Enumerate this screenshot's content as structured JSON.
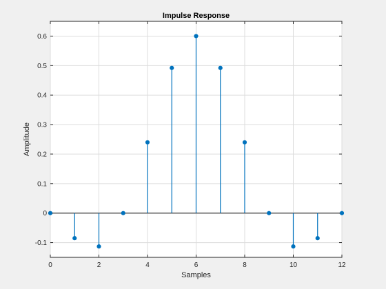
{
  "chart_data": {
    "type": "stem",
    "title": "Impulse Response",
    "xlabel": "Samples",
    "ylabel": "Amplitude",
    "x": [
      0,
      1,
      2,
      3,
      4,
      5,
      6,
      7,
      8,
      9,
      10,
      11,
      12
    ],
    "values": [
      0,
      -0.085,
      -0.113,
      0,
      0.24,
      0.492,
      0.6,
      0.492,
      0.24,
      0,
      -0.113,
      -0.085,
      0
    ],
    "xlim": [
      0,
      12
    ],
    "ylim": [
      -0.15,
      0.65
    ],
    "xticks": [
      "0",
      "2",
      "4",
      "6",
      "8",
      "10",
      "12"
    ],
    "yticks": [
      "-0.1",
      "0",
      "0.1",
      "0.2",
      "0.3",
      "0.4",
      "0.5",
      "0.6"
    ],
    "grid": true,
    "colors": {
      "stem": "#0072bd",
      "axes_bg": "#ffffff",
      "figure_bg": "#f0f0f0",
      "grid": "#dcdcdc",
      "baseline": "#000000"
    }
  }
}
